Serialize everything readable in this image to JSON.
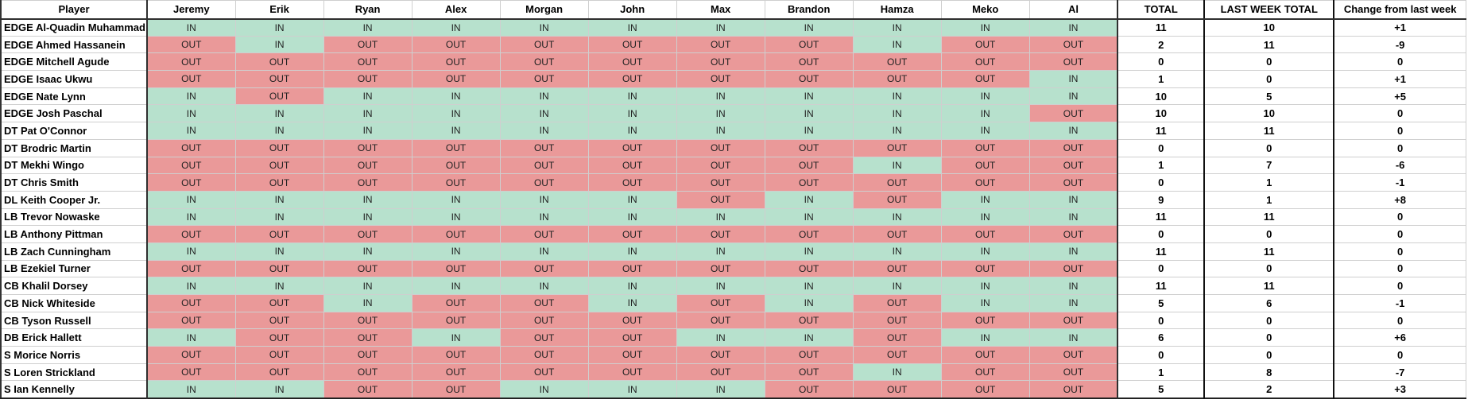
{
  "colors": {
    "in_bg": "#b7e1cd",
    "out_bg": "#ea9999",
    "grid_line": "#cfcfcf",
    "dark_border": "#2f2f2f"
  },
  "table": {
    "player_header": "Player",
    "voters": [
      "Jeremy",
      "Erik",
      "Ryan",
      "Alex",
      "Morgan",
      "John",
      "Max",
      "Brandon",
      "Hamza",
      "Meko",
      "Al"
    ],
    "summary_headers": [
      "TOTAL",
      "LAST WEEK TOTAL",
      "Change from last week"
    ],
    "rows": [
      {
        "player": "EDGE Al-Quadin Muhammad",
        "votes": [
          "IN",
          "IN",
          "IN",
          "IN",
          "IN",
          "IN",
          "IN",
          "IN",
          "IN",
          "IN",
          "IN"
        ],
        "total": "11",
        "last_week": "10",
        "change": "+1"
      },
      {
        "player": "EDGE Ahmed Hassanein",
        "votes": [
          "OUT",
          "IN",
          "OUT",
          "OUT",
          "OUT",
          "OUT",
          "OUT",
          "OUT",
          "IN",
          "OUT",
          "OUT"
        ],
        "total": "2",
        "last_week": "11",
        "change": "-9"
      },
      {
        "player": "EDGE Mitchell Agude",
        "votes": [
          "OUT",
          "OUT",
          "OUT",
          "OUT",
          "OUT",
          "OUT",
          "OUT",
          "OUT",
          "OUT",
          "OUT",
          "OUT"
        ],
        "total": "0",
        "last_week": "0",
        "change": "0"
      },
      {
        "player": "EDGE Isaac Ukwu",
        "votes": [
          "OUT",
          "OUT",
          "OUT",
          "OUT",
          "OUT",
          "OUT",
          "OUT",
          "OUT",
          "OUT",
          "OUT",
          "IN"
        ],
        "total": "1",
        "last_week": "0",
        "change": "+1"
      },
      {
        "player": "EDGE Nate Lynn",
        "votes": [
          "IN",
          "OUT",
          "IN",
          "IN",
          "IN",
          "IN",
          "IN",
          "IN",
          "IN",
          "IN",
          "IN"
        ],
        "total": "10",
        "last_week": "5",
        "change": "+5"
      },
      {
        "player": "EDGE Josh Paschal",
        "votes": [
          "IN",
          "IN",
          "IN",
          "IN",
          "IN",
          "IN",
          "IN",
          "IN",
          "IN",
          "IN",
          "OUT"
        ],
        "total": "10",
        "last_week": "10",
        "change": "0"
      },
      {
        "player": "DT Pat O'Connor",
        "votes": [
          "IN",
          "IN",
          "IN",
          "IN",
          "IN",
          "IN",
          "IN",
          "IN",
          "IN",
          "IN",
          "IN"
        ],
        "total": "11",
        "last_week": "11",
        "change": "0"
      },
      {
        "player": "DT Brodric Martin",
        "votes": [
          "OUT",
          "OUT",
          "OUT",
          "OUT",
          "OUT",
          "OUT",
          "OUT",
          "OUT",
          "OUT",
          "OUT",
          "OUT"
        ],
        "total": "0",
        "last_week": "0",
        "change": "0"
      },
      {
        "player": "DT Mekhi Wingo",
        "votes": [
          "OUT",
          "OUT",
          "OUT",
          "OUT",
          "OUT",
          "OUT",
          "OUT",
          "OUT",
          "IN",
          "OUT",
          "OUT"
        ],
        "total": "1",
        "last_week": "7",
        "change": "-6"
      },
      {
        "player": "DT Chris Smith",
        "votes": [
          "OUT",
          "OUT",
          "OUT",
          "OUT",
          "OUT",
          "OUT",
          "OUT",
          "OUT",
          "OUT",
          "OUT",
          "OUT"
        ],
        "total": "0",
        "last_week": "1",
        "change": "-1"
      },
      {
        "player": "DL Keith Cooper Jr.",
        "votes": [
          "IN",
          "IN",
          "IN",
          "IN",
          "IN",
          "IN",
          "OUT",
          "IN",
          "OUT",
          "IN",
          "IN"
        ],
        "total": "9",
        "last_week": "1",
        "change": "+8"
      },
      {
        "player": "LB Trevor Nowaske",
        "votes": [
          "IN",
          "IN",
          "IN",
          "IN",
          "IN",
          "IN",
          "IN",
          "IN",
          "IN",
          "IN",
          "IN"
        ],
        "total": "11",
        "last_week": "11",
        "change": "0"
      },
      {
        "player": "LB Anthony Pittman",
        "votes": [
          "OUT",
          "OUT",
          "OUT",
          "OUT",
          "OUT",
          "OUT",
          "OUT",
          "OUT",
          "OUT",
          "OUT",
          "OUT"
        ],
        "total": "0",
        "last_week": "0",
        "change": "0"
      },
      {
        "player": "LB Zach Cunningham",
        "votes": [
          "IN",
          "IN",
          "IN",
          "IN",
          "IN",
          "IN",
          "IN",
          "IN",
          "IN",
          "IN",
          "IN"
        ],
        "total": "11",
        "last_week": "11",
        "change": "0"
      },
      {
        "player": "LB Ezekiel Turner",
        "votes": [
          "OUT",
          "OUT",
          "OUT",
          "OUT",
          "OUT",
          "OUT",
          "OUT",
          "OUT",
          "OUT",
          "OUT",
          "OUT"
        ],
        "total": "0",
        "last_week": "0",
        "change": "0"
      },
      {
        "player": "CB Khalil Dorsey",
        "votes": [
          "IN",
          "IN",
          "IN",
          "IN",
          "IN",
          "IN",
          "IN",
          "IN",
          "IN",
          "IN",
          "IN"
        ],
        "total": "11",
        "last_week": "11",
        "change": "0"
      },
      {
        "player": "CB Nick Whiteside",
        "votes": [
          "OUT",
          "OUT",
          "IN",
          "OUT",
          "OUT",
          "IN",
          "OUT",
          "IN",
          "OUT",
          "IN",
          "IN"
        ],
        "total": "5",
        "last_week": "6",
        "change": "-1"
      },
      {
        "player": "CB Tyson Russell",
        "votes": [
          "OUT",
          "OUT",
          "OUT",
          "OUT",
          "OUT",
          "OUT",
          "OUT",
          "OUT",
          "OUT",
          "OUT",
          "OUT"
        ],
        "total": "0",
        "last_week": "0",
        "change": "0"
      },
      {
        "player": "DB Erick Hallett",
        "votes": [
          "IN",
          "OUT",
          "OUT",
          "IN",
          "OUT",
          "OUT",
          "IN",
          "IN",
          "OUT",
          "IN",
          "IN"
        ],
        "total": "6",
        "last_week": "0",
        "change": "+6"
      },
      {
        "player": "S Morice Norris",
        "votes": [
          "OUT",
          "OUT",
          "OUT",
          "OUT",
          "OUT",
          "OUT",
          "OUT",
          "OUT",
          "OUT",
          "OUT",
          "OUT"
        ],
        "total": "0",
        "last_week": "0",
        "change": "0"
      },
      {
        "player": "S Loren Strickland",
        "votes": [
          "OUT",
          "OUT",
          "OUT",
          "OUT",
          "OUT",
          "OUT",
          "OUT",
          "OUT",
          "IN",
          "OUT",
          "OUT"
        ],
        "total": "1",
        "last_week": "8",
        "change": "-7"
      },
      {
        "player": "S Ian Kennelly",
        "votes": [
          "IN",
          "IN",
          "OUT",
          "OUT",
          "IN",
          "IN",
          "IN",
          "OUT",
          "OUT",
          "OUT",
          "OUT"
        ],
        "total": "5",
        "last_week": "2",
        "change": "+3"
      }
    ]
  }
}
